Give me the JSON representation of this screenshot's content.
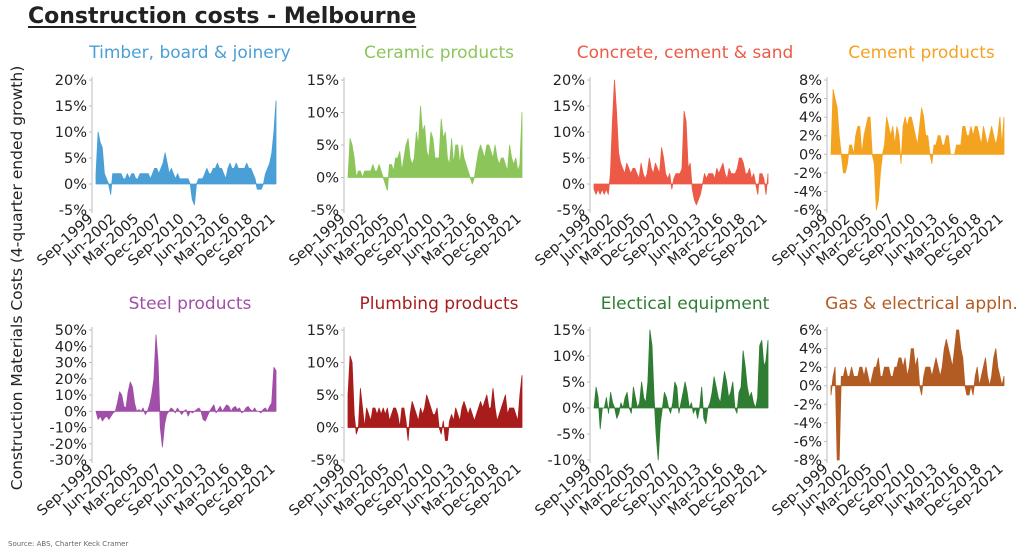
{
  "title": "Construction costs - Melbourne",
  "ylabel": "Construction Materials Costs (4-quarter ended growth)",
  "source": "Source: ABS, Charter Keck Cramer",
  "chart_data": [
    {
      "type": "area",
      "title": "Timber, board & joinery",
      "color": "#4a9fd6",
      "ylim": [
        -5,
        20
      ],
      "yticks": [
        "20%",
        "15%",
        "10%",
        "5%",
        "0%",
        "-5%"
      ],
      "xticks": [
        "Sep-1999",
        "Jun-2002",
        "Mar-2005",
        "Dec-2007",
        "Sep-2010",
        "Jun-2013",
        "Mar-2016",
        "Dec-2018",
        "Sep-2021"
      ],
      "x_range": [
        "Sep-1999",
        "Mar-2022"
      ],
      "values": [
        2,
        10,
        8,
        7,
        2,
        1,
        0,
        -2,
        2,
        2,
        2,
        2,
        2,
        1,
        1,
        2,
        1,
        2,
        2,
        1,
        1,
        2,
        2,
        2,
        2,
        2,
        1,
        2,
        3,
        3,
        2,
        3,
        4,
        6,
        4,
        2,
        3,
        2,
        1,
        2,
        1,
        1,
        1,
        1,
        1,
        0,
        -3,
        -4,
        0,
        1,
        1,
        1,
        2,
        3,
        2,
        2,
        3,
        3,
        4,
        3,
        3,
        2,
        1,
        3,
        4,
        3,
        3,
        4,
        3,
        3,
        3,
        3,
        4,
        3,
        3,
        2,
        1,
        -1,
        -1,
        -1,
        0,
        2,
        3,
        4,
        6,
        10,
        16
      ]
    },
    {
      "type": "area",
      "title": "Ceramic products",
      "color": "#8cc65a",
      "ylim": [
        -5,
        15
      ],
      "yticks": [
        "15%",
        "10%",
        "5%",
        "0%",
        "-5%"
      ],
      "xticks": [
        "Sep-1999",
        "Jun-2002",
        "Mar-2005",
        "Dec-2007",
        "Sep-2010",
        "Jun-2013",
        "Mar-2016",
        "Dec-2018",
        "Sep-2021"
      ],
      "x_range": [
        "Sep-1999",
        "Mar-2022"
      ],
      "values": [
        0,
        6,
        5,
        3,
        0,
        1,
        1,
        0,
        1,
        1,
        1,
        1,
        2,
        1,
        1,
        2,
        1,
        0,
        -1,
        -2,
        2,
        2,
        1,
        3,
        3,
        4,
        1,
        3,
        5,
        6,
        3,
        2,
        3,
        7,
        5,
        11,
        7,
        8,
        4,
        3,
        7,
        6,
        3,
        3,
        3,
        9,
        6,
        7,
        3,
        2,
        6,
        2,
        5,
        5,
        2,
        5,
        3,
        2,
        1,
        0,
        -1,
        0,
        2,
        4,
        5,
        4,
        3,
        5,
        5,
        4,
        3,
        5,
        3,
        2,
        3,
        3,
        2,
        1,
        5,
        3,
        2,
        3,
        1,
        2,
        10
      ]
    },
    {
      "type": "area",
      "title": "Concrete, cement & sand",
      "color": "#ec5a47",
      "ylim": [
        -5,
        20
      ],
      "yticks": [
        "20%",
        "15%",
        "10%",
        "5%",
        "0%",
        "-5%"
      ],
      "xticks": [
        "Sep-1999",
        "Jun-2002",
        "Mar-2005",
        "Dec-2007",
        "Sep-2010",
        "Jun-2013",
        "Mar-2016",
        "Dec-2018",
        "Sep-2021"
      ],
      "x_range": [
        "Sep-1999",
        "Mar-2022"
      ],
      "values": [
        -1,
        -2,
        -1,
        -2,
        -1,
        -2,
        -1,
        -2,
        2,
        12,
        20,
        14,
        6,
        4,
        3,
        2,
        4,
        3,
        2,
        3,
        3,
        2,
        1,
        4,
        2,
        1,
        2,
        5,
        3,
        2,
        4,
        3,
        2,
        7,
        5,
        2,
        1,
        2,
        -1,
        1,
        2,
        2,
        2,
        3,
        14,
        12,
        3,
        4,
        -1,
        -3,
        -4,
        -3,
        -2,
        0,
        2,
        1,
        2,
        2,
        2,
        1,
        3,
        2,
        3,
        4,
        2,
        1,
        3,
        2,
        2,
        2,
        3,
        5,
        5,
        4,
        2,
        2,
        3,
        1,
        2,
        0,
        -2,
        2,
        2,
        1,
        -2,
        2
      ]
    },
    {
      "type": "area",
      "title": "Cement products",
      "color": "#f4a321",
      "ylim": [
        -6,
        8
      ],
      "yticks": [
        "8%",
        "6%",
        "4%",
        "2%",
        "0%",
        "-2%",
        "-4%",
        "-6%"
      ],
      "xticks": [
        "Sep-1999",
        "Jun-2002",
        "Mar-2005",
        "Dec-2007",
        "Sep-2010",
        "Jun-2013",
        "Mar-2016",
        "Dec-2018",
        "Sep-2021"
      ],
      "x_range": [
        "Sep-1999",
        "Mar-2022"
      ],
      "values": [
        0,
        7,
        6,
        5,
        2,
        0,
        -2,
        -2,
        -1,
        1,
        1,
        0,
        2,
        3,
        3,
        0,
        2,
        3,
        4,
        4,
        0,
        -1,
        -6,
        -5,
        -2,
        0,
        1,
        4,
        3,
        2,
        3,
        1,
        3,
        2,
        -1,
        3,
        4,
        3,
        4,
        4,
        3,
        2,
        1,
        3,
        5,
        4,
        2,
        2,
        0,
        -1,
        1,
        1,
        2,
        2,
        1,
        1,
        2,
        2,
        0,
        0,
        0,
        1,
        1,
        1,
        3,
        3,
        2,
        2,
        3,
        2,
        3,
        3,
        2,
        1,
        3,
        2,
        1,
        2,
        3,
        2,
        1,
        2,
        4,
        1,
        4
      ]
    },
    {
      "type": "area",
      "title": "Steel products",
      "color": "#a14ea8",
      "ylim": [
        -30,
        50
      ],
      "yticks": [
        "50%",
        "40%",
        "30%",
        "20%",
        "10%",
        "0%",
        "-10%",
        "-20%",
        "-30%"
      ],
      "xticks": [
        "Sep-1999",
        "Jun-2002",
        "Mar-2005",
        "Dec-2007",
        "Sep-2010",
        "Jun-2013",
        "Mar-2016",
        "Dec-2018",
        "Sep-2021"
      ],
      "x_range": [
        "Sep-1999",
        "Mar-2022"
      ],
      "values": [
        0,
        -5,
        -3,
        -6,
        -4,
        -3,
        -5,
        -3,
        -1,
        0,
        5,
        12,
        10,
        3,
        2,
        12,
        18,
        15,
        5,
        0,
        1,
        0,
        2,
        -2,
        0,
        4,
        10,
        20,
        47,
        30,
        -10,
        -22,
        -8,
        -2,
        0,
        2,
        1,
        -1,
        2,
        0,
        -2,
        0,
        1,
        -3,
        0,
        -1,
        0,
        1,
        2,
        0,
        -5,
        -6,
        -3,
        0,
        2,
        4,
        -1,
        1,
        3,
        0,
        2,
        4,
        3,
        0,
        2,
        3,
        1,
        2,
        -1,
        0,
        2,
        3,
        1,
        0,
        2,
        0,
        0,
        -1,
        1,
        2,
        0,
        3,
        5,
        27,
        25
      ]
    },
    {
      "type": "area",
      "title": "Plumbing products",
      "color": "#a81c1c",
      "ylim": [
        -5,
        15
      ],
      "yticks": [
        "15%",
        "10%",
        "5%",
        "0%",
        "-5%"
      ],
      "xticks": [
        "Sep-1999",
        "Jun-2002",
        "Mar-2005",
        "Dec-2007",
        "Sep-2010",
        "Jun-2013",
        "Mar-2016",
        "Dec-2018",
        "Sep-2021"
      ],
      "x_range": [
        "Sep-1999",
        "Mar-2022"
      ],
      "values": [
        5,
        11,
        10,
        2,
        -1,
        0,
        6,
        3,
        0,
        3,
        2,
        1,
        3,
        3,
        2,
        3,
        2,
        3,
        2,
        3,
        1,
        2,
        3,
        3,
        2,
        0,
        3,
        3,
        1,
        -2,
        2,
        4,
        3,
        2,
        1,
        3,
        2,
        3,
        5,
        4,
        3,
        2,
        2,
        3,
        0,
        -1,
        1,
        -2,
        -2,
        1,
        2,
        1,
        3,
        2,
        1,
        3,
        4,
        3,
        2,
        3,
        2,
        1,
        2,
        3,
        4,
        3,
        4,
        5,
        3,
        3,
        6,
        3,
        1,
        2,
        3,
        4,
        5,
        2,
        3,
        3,
        3,
        2,
        1,
        5,
        8
      ]
    },
    {
      "type": "area",
      "title": "Electical equipment",
      "color": "#2e7d32",
      "ylim": [
        -10,
        15
      ],
      "yticks": [
        "15%",
        "10%",
        "5%",
        "0%",
        "-5%",
        "-10%"
      ],
      "xticks": [
        "Sep-1999",
        "Jun-2002",
        "Mar-2005",
        "Dec-2007",
        "Sep-2010",
        "Jun-2013",
        "Mar-2016",
        "Dec-2018",
        "Sep-2021"
      ],
      "x_range": [
        "Sep-1999",
        "Mar-2022"
      ],
      "values": [
        0,
        4,
        2,
        -4,
        0,
        0,
        2,
        -1,
        3,
        1,
        0,
        -2,
        -1,
        1,
        0,
        2,
        3,
        0,
        -1,
        4,
        2,
        0,
        1,
        5,
        2,
        1,
        5,
        15,
        12,
        2,
        -5,
        -10,
        -3,
        0,
        3,
        2,
        0,
        -1,
        1,
        5,
        4,
        -1,
        1,
        3,
        5,
        3,
        0,
        1,
        -1,
        0,
        -2,
        0,
        4,
        -2,
        -3,
        0,
        1,
        3,
        6,
        4,
        2,
        1,
        4,
        7,
        5,
        2,
        3,
        5,
        0,
        -1,
        3,
        4,
        11,
        8,
        4,
        2,
        3,
        1,
        0,
        2,
        12,
        13,
        8,
        9,
        13
      ]
    },
    {
      "type": "area",
      "title": "Gas & electrical appln.",
      "color": "#b25b22",
      "ylim": [
        -8,
        6
      ],
      "yticks": [
        "6%",
        "4%",
        "2%",
        "0%",
        "-2%",
        "-4%",
        "-6%",
        "-8%"
      ],
      "xticks": [
        "Sep-1999",
        "Jun-2002",
        "Mar-2005",
        "Dec-2007",
        "Sep-2010",
        "Jun-2013",
        "Mar-2016",
        "Dec-2018",
        "Sep-2021"
      ],
      "x_range": [
        "Sep-1999",
        "Mar-2022"
      ],
      "values": [
        -1,
        1,
        2,
        -8,
        -8,
        1,
        1,
        2,
        1,
        1,
        2,
        1,
        1,
        1,
        2,
        2,
        1,
        2,
        1,
        0,
        1,
        2,
        2,
        3,
        1,
        1,
        2,
        2,
        2,
        1,
        1,
        2,
        2,
        3,
        3,
        2,
        3,
        1,
        2,
        4,
        4,
        2,
        3,
        0,
        -1,
        1,
        2,
        2,
        2,
        1,
        2,
        3,
        2,
        1,
        2,
        4,
        5,
        4,
        3,
        2,
        4,
        6,
        6,
        4,
        3,
        0,
        -1,
        -1,
        0,
        -1,
        1,
        2,
        0,
        1,
        2,
        3,
        1,
        0,
        1,
        3,
        4,
        2,
        1,
        0,
        1
      ]
    }
  ]
}
